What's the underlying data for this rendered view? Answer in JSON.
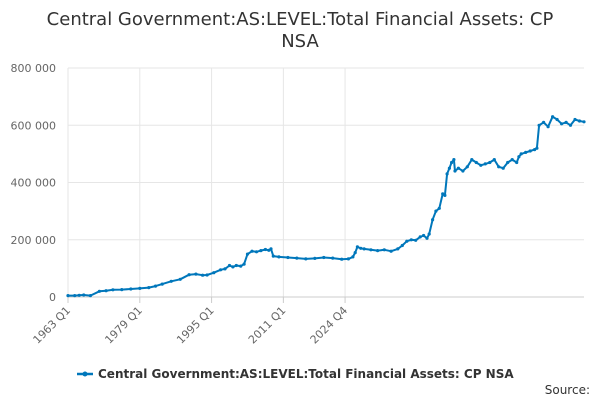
{
  "chart_data": {
    "type": "line",
    "title_lines": [
      "Central Government:AS:LEVEL:Total Financial Assets: CP",
      "NSA"
    ],
    "series": [
      {
        "name": "Central Government:AS:LEVEL:Total Financial Assets: CP NSA",
        "color": "#0077bb",
        "points": [
          [
            1963.0,
            5000
          ],
          [
            1964.5,
            5000
          ],
          [
            1965.5,
            6000
          ],
          [
            1966.5,
            7000
          ],
          [
            1968.0,
            5000
          ],
          [
            1970.0,
            20000
          ],
          [
            1971.5,
            22000
          ],
          [
            1973.0,
            25000
          ],
          [
            1975.0,
            26000
          ],
          [
            1977.0,
            28000
          ],
          [
            1979.0,
            30000
          ],
          [
            1981.0,
            33000
          ],
          [
            1982.5,
            38000
          ],
          [
            1984.0,
            45000
          ],
          [
            1986.0,
            55000
          ],
          [
            1988.0,
            62000
          ],
          [
            1990.0,
            78000
          ],
          [
            1991.5,
            80000
          ],
          [
            1993.0,
            76000
          ],
          [
            1994.0,
            77000
          ],
          [
            1995.5,
            85000
          ],
          [
            1997.0,
            95000
          ],
          [
            1998.0,
            98000
          ],
          [
            1999.0,
            110000
          ],
          [
            1999.75,
            105000
          ],
          [
            2000.5,
            110000
          ],
          [
            2001.5,
            108000
          ],
          [
            2002.25,
            115000
          ],
          [
            2003.0,
            150000
          ],
          [
            2004.0,
            160000
          ],
          [
            2005.0,
            158000
          ],
          [
            2006.0,
            162000
          ],
          [
            2007.0,
            166000
          ],
          [
            2007.75,
            163000
          ],
          [
            2008.25,
            168000
          ],
          [
            2008.75,
            143000
          ],
          [
            2010.0,
            140000
          ],
          [
            2012.0,
            138000
          ],
          [
            2014.0,
            136000
          ],
          [
            2016.0,
            133000
          ],
          [
            2018.0,
            135000
          ],
          [
            2020.0,
            138000
          ],
          [
            2022.0,
            136000
          ],
          [
            2024.0,
            132000
          ],
          [
            2025.5,
            133000
          ],
          [
            2026.5,
            140000
          ],
          [
            2027.0,
            155000
          ],
          [
            2027.5,
            175000
          ],
          [
            2028.25,
            170000
          ],
          [
            2029.0,
            168000
          ],
          [
            2030.5,
            165000
          ],
          [
            2032.0,
            162000
          ],
          [
            2033.5,
            165000
          ],
          [
            2035.0,
            160000
          ],
          [
            2036.5,
            168000
          ],
          [
            2037.5,
            180000
          ],
          [
            2038.5,
            195000
          ],
          [
            2039.5,
            200000
          ],
          [
            2040.5,
            198000
          ],
          [
            2041.5,
            210000
          ],
          [
            2042.25,
            215000
          ],
          [
            2043.0,
            205000
          ],
          [
            2043.5,
            220000
          ],
          [
            2044.25,
            270000
          ],
          [
            2045.0,
            300000
          ],
          [
            2045.75,
            310000
          ],
          [
            2046.5,
            360000
          ],
          [
            2047.0,
            355000
          ],
          [
            2047.5,
            430000
          ],
          [
            2048.0,
            450000
          ],
          [
            2048.5,
            470000
          ],
          [
            2049.0,
            480000
          ],
          [
            2049.25,
            440000
          ],
          [
            2050.0,
            450000
          ],
          [
            2051.0,
            440000
          ],
          [
            2052.0,
            455000
          ],
          [
            2053.0,
            480000
          ],
          [
            2054.0,
            470000
          ],
          [
            2055.0,
            460000
          ],
          [
            2056.0,
            465000
          ],
          [
            2057.0,
            470000
          ],
          [
            2058.0,
            480000
          ],
          [
            2059.0,
            455000
          ],
          [
            2060.0,
            450000
          ],
          [
            2061.0,
            470000
          ],
          [
            2062.0,
            480000
          ],
          [
            2063.0,
            470000
          ],
          [
            2063.5,
            490000
          ],
          [
            2064.0,
            500000
          ],
          [
            2065.0,
            505000
          ],
          [
            2066.0,
            510000
          ],
          [
            2067.0,
            515000
          ],
          [
            2067.5,
            520000
          ],
          [
            2068.0,
            600000
          ],
          [
            2069.0,
            610000
          ],
          [
            2070.0,
            595000
          ],
          [
            2071.0,
            630000
          ],
          [
            2072.0,
            620000
          ],
          [
            2073.0,
            605000
          ],
          [
            2074.0,
            610000
          ],
          [
            2075.0,
            600000
          ],
          [
            2076.0,
            620000
          ],
          [
            2077.0,
            615000
          ],
          [
            2078.0,
            612000
          ]
        ]
      }
    ],
    "x_range": [
      1963.0,
      2078.0
    ],
    "y_range": [
      0,
      800000
    ],
    "y_ticks": [
      {
        "value": 0,
        "label": "0"
      },
      {
        "value": 200000,
        "label": "200 000"
      },
      {
        "value": 400000,
        "label": "400 000"
      },
      {
        "value": 600000,
        "label": "600 000"
      },
      {
        "value": 800000,
        "label": "800 000"
      }
    ],
    "x_ticks": [
      {
        "value": 1963.0,
        "label": "1963 Q1"
      },
      {
        "value": 1979.0,
        "label": "1979 Q1"
      },
      {
        "value": 1995.0,
        "label": "1995 Q1"
      },
      {
        "value": 2011.0,
        "label": "2011 Q1"
      },
      {
        "value": 2024.75,
        "label": "2024 Q4"
      }
    ],
    "x_grid_ticks": [
      1963.0,
      1979.0,
      1995.0,
      2011.0,
      2024.75
    ],
    "grid": true,
    "legend_position": "bottom",
    "source_label": "Source:"
  }
}
